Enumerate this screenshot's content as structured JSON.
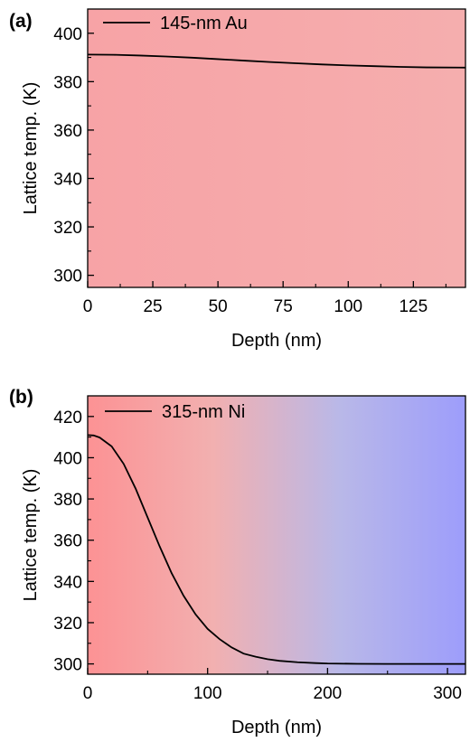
{
  "chart_data": [
    {
      "panel_label": "(a)",
      "type": "line",
      "xlabel": "Depth (nm)",
      "ylabel": "Lattice temp. (K)",
      "xlim": [
        0,
        145
      ],
      "ylim": [
        295,
        410
      ],
      "xticks": [
        0,
        25,
        50,
        75,
        100,
        125
      ],
      "yticks": [
        300,
        320,
        340,
        360,
        380,
        400
      ],
      "grid": false,
      "legend_position": "top-left",
      "background_gradient": [
        "#f7a3a6",
        "#f5aeae"
      ],
      "series": [
        {
          "name": "145-nm Au",
          "color": "#000000",
          "x": [
            0,
            10,
            20,
            30,
            40,
            50,
            60,
            70,
            80,
            90,
            100,
            110,
            120,
            130,
            145
          ],
          "y": [
            391.2,
            391.1,
            390.8,
            390.4,
            389.9,
            389.3,
            388.7,
            388.1,
            387.6,
            387.1,
            386.7,
            386.4,
            386.1,
            385.9,
            385.8
          ]
        }
      ]
    },
    {
      "panel_label": "(b)",
      "type": "line",
      "xlabel": "Depth (nm)",
      "ylabel": "Lattice temp. (K)",
      "xlim": [
        0,
        315
      ],
      "ylim": [
        295,
        430
      ],
      "xticks": [
        0,
        100,
        200,
        300
      ],
      "yticks": [
        300,
        320,
        340,
        360,
        380,
        400,
        420
      ],
      "grid": false,
      "legend_position": "top-left",
      "background_gradient": [
        "#fc9294",
        "#f2b0b0",
        "#b9b8e8",
        "#9d9dfb"
      ],
      "series": [
        {
          "name": "315-nm Ni",
          "color": "#000000",
          "x": [
            0,
            5,
            10,
            20,
            30,
            40,
            50,
            60,
            70,
            80,
            90,
            100,
            110,
            120,
            130,
            140,
            150,
            160,
            175,
            190,
            200,
            225,
            250,
            275,
            300,
            315
          ],
          "y": [
            411,
            410.8,
            409.8,
            405.5,
            397,
            385,
            371,
            357,
            344,
            333,
            324,
            317,
            312,
            308,
            305,
            303.5,
            302.3,
            301.5,
            300.8,
            300.4,
            300.2,
            300.05,
            300,
            300,
            300,
            300
          ]
        }
      ]
    }
  ]
}
